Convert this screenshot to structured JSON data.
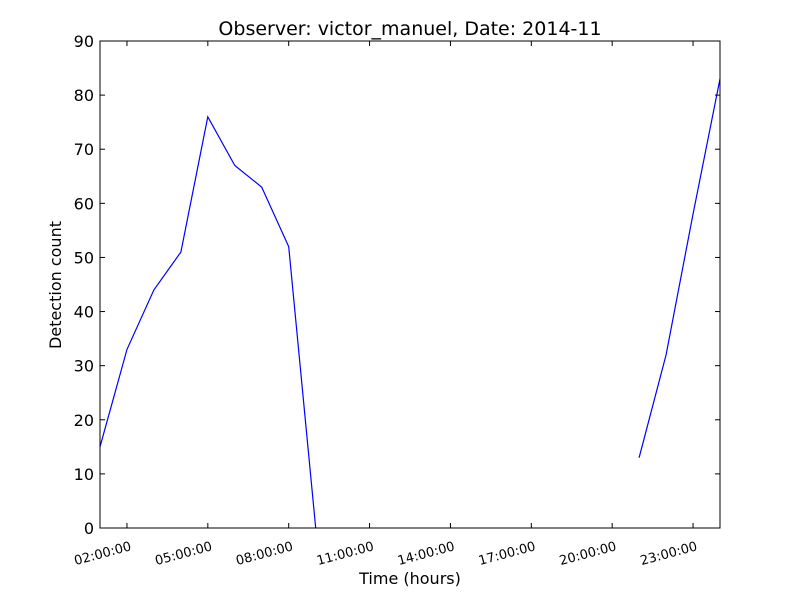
{
  "chart_data": {
    "type": "line",
    "title": "Observer: victor_manuel, Date: 2014-11",
    "xlabel": "Time (hours)",
    "ylabel": "Detection count",
    "xlim": [
      "01:00:00",
      "24:00:00"
    ],
    "ylim": [
      0,
      90
    ],
    "grid": false,
    "legend": "none",
    "x_ticks": [
      "02:00:00",
      "05:00:00",
      "08:00:00",
      "11:00:00",
      "14:00:00",
      "17:00:00",
      "20:00:00",
      "23:00:00"
    ],
    "y_ticks": [
      0,
      10,
      20,
      30,
      40,
      50,
      60,
      70,
      80,
      90
    ],
    "series": [
      {
        "color": "#0000ff",
        "segments": [
          {
            "x": [
              "01:00:00",
              "02:00:00",
              "03:00:00",
              "04:00:00",
              "05:00:00",
              "06:00:00",
              "07:00:00",
              "08:00:00",
              "09:00:00"
            ],
            "y": [
              15,
              33,
              44,
              51,
              76,
              67,
              63,
              52,
              0
            ]
          },
          {
            "x": [
              "21:00:00",
              "22:00:00",
              "23:00:00",
              "24:00:00"
            ],
            "y": [
              13,
              32,
              58,
              83
            ]
          }
        ]
      }
    ]
  }
}
